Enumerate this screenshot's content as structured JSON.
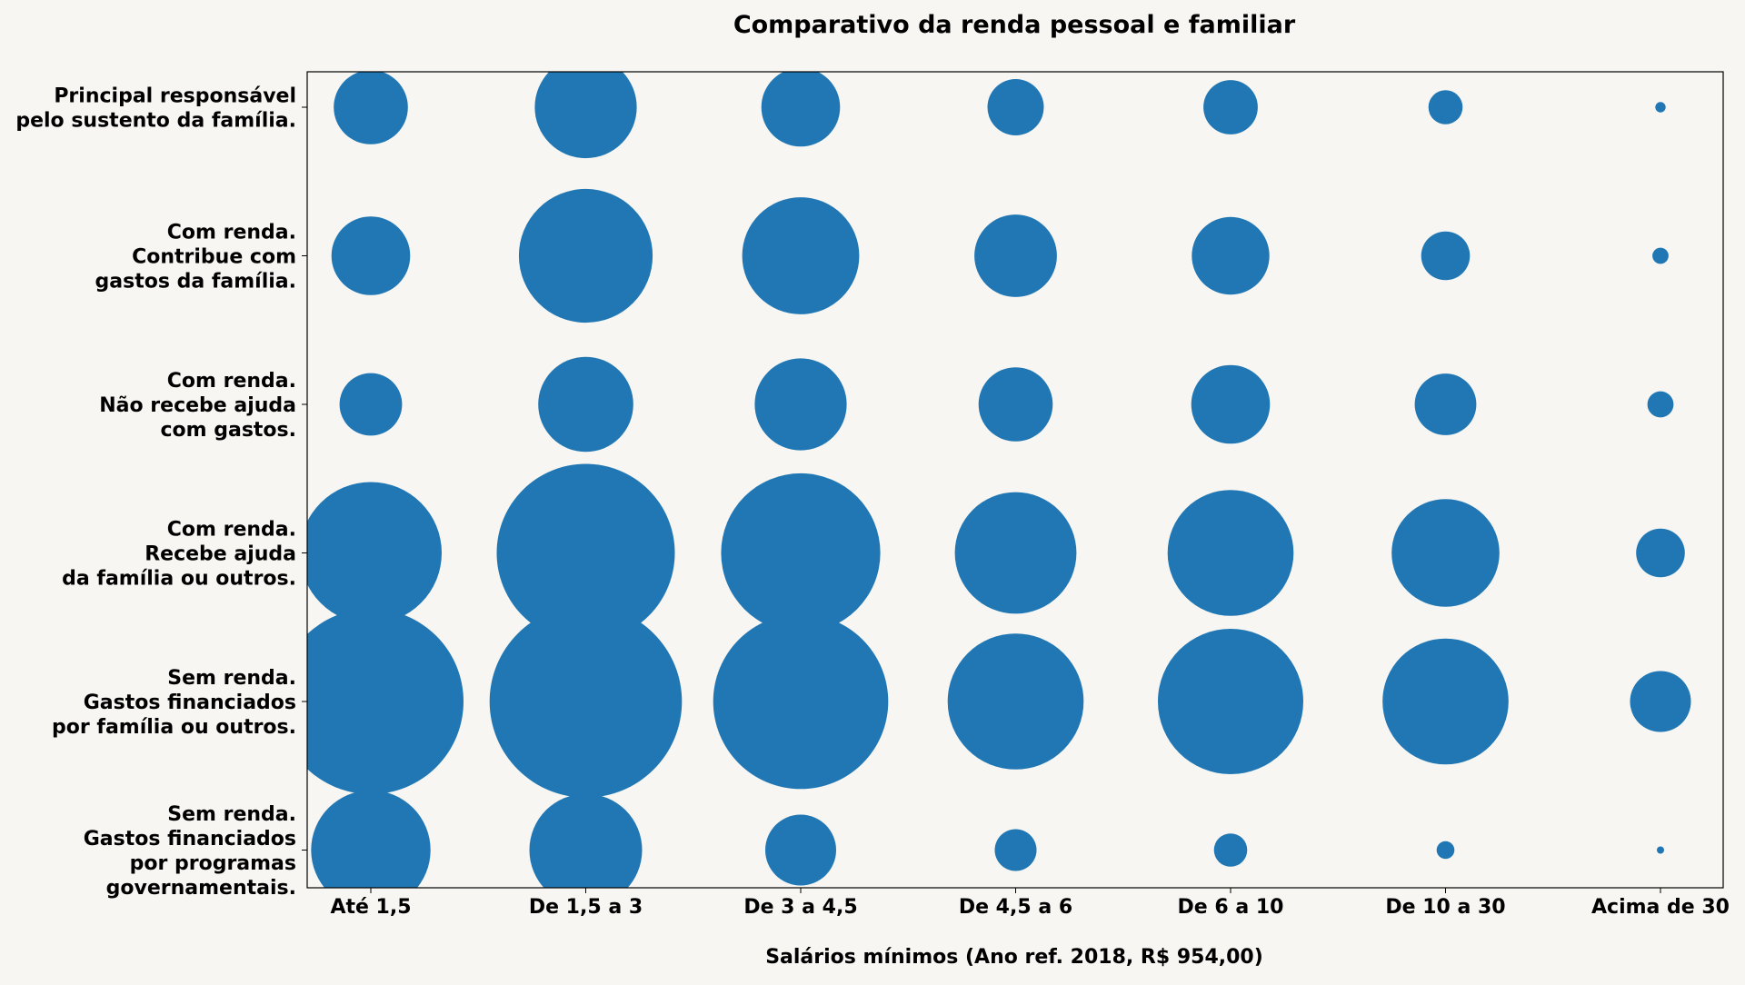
{
  "chart_data": {
    "type": "scatter",
    "title": "Comparativo da renda pessoal e familiar",
    "xlabel": "Salários mínimos (Ano ref. 2018, R$ 954,00)",
    "ylabel": "",
    "x_categories": [
      "Até 1,5",
      "De 1,5 a 3",
      "De 3 a 4,5",
      "De 4,5 a 6",
      "De 6 a 10",
      "De 10 a 30",
      "Acima de 30"
    ],
    "y_categories": [
      [
        "Principal responsável",
        "pelo sustento da família."
      ],
      [
        "Com renda.",
        "Contribue com",
        "gastos da família."
      ],
      [
        "Com renda.",
        "Não recebe ajuda",
        "com gastos."
      ],
      [
        "Com renda.",
        "Recebe ajuda",
        "da família ou outros."
      ],
      [
        "Sem renda.",
        "Gastos financiados",
        "por família ou outros."
      ],
      [
        "Sem renda.",
        "Gastos financiados",
        "por programas",
        "governamentais."
      ]
    ],
    "bubble_size_values": [
      [
        104,
        197,
        117,
        60,
        56,
        22,
        2
      ],
      [
        117,
        339,
        259,
        129,
        114,
        45,
        5
      ],
      [
        74,
        171,
        160,
        104,
        117,
        72,
        13
      ],
      [
        380,
        600,
        480,
        280,
        300,
        220,
        45
      ],
      [
        650,
        700,
        580,
        350,
        400,
        300,
        70
      ],
      [
        270,
        240,
        95,
        33,
        21,
        6,
        1
      ]
    ],
    "marker_color": "#2077b4",
    "grid": false,
    "legend": "none"
  }
}
